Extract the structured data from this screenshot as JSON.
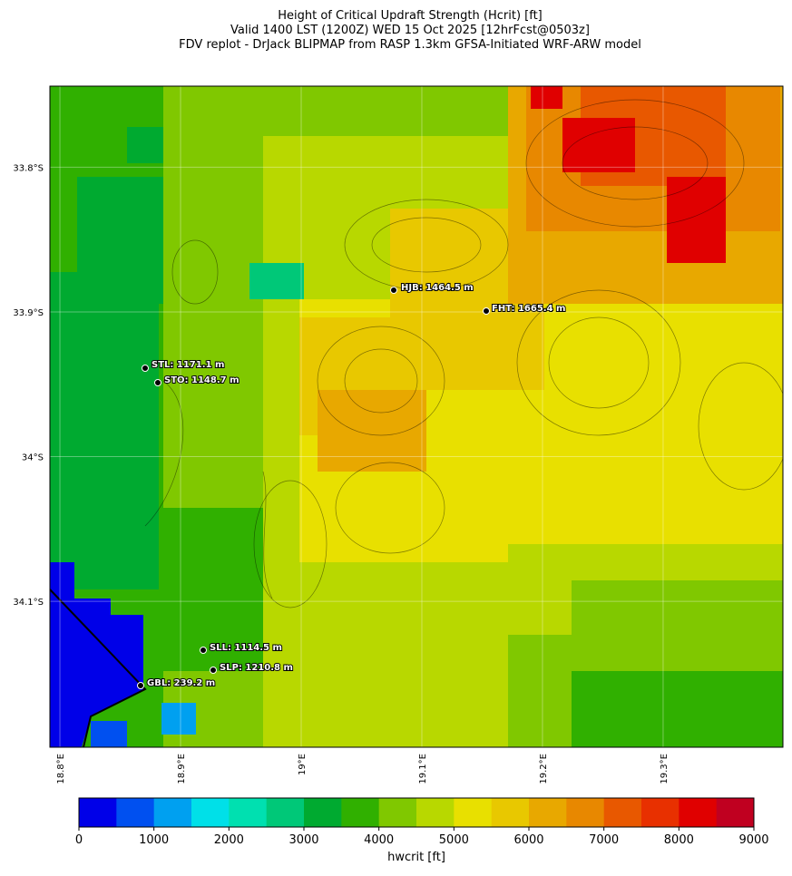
{
  "title": [
    "Height of Critical Updraft Strength (Hcrit) [ft]",
    "Valid 1400 LST (1200Z) WED 15 Oct 2025 [12hrFcst@0503z]",
    "FDV replot - DrJack BLIPMAP from RASP 1.3km GFSA-Initiated WRF-ARW model"
  ],
  "map": {
    "lat_lim": [
      -33.744,
      -34.2008
    ],
    "lat_ticks": [
      {
        "value": -33.8,
        "label": "33.8°S"
      },
      {
        "value": -33.9,
        "label": "33.9°S"
      },
      {
        "value": -34,
        "label": "34°S"
      },
      {
        "value": -34.1,
        "label": "34.1°S"
      }
    ],
    "lon_lim": [
      18.7917,
      19.3993
    ],
    "lon_ticks": [
      {
        "value": 18.8,
        "label": "18.8°E"
      },
      {
        "value": 18.9,
        "label": "18.9°E"
      },
      {
        "value": 19,
        "label": "19°E"
      },
      {
        "value": 19.1,
        "label": "19.1°E"
      },
      {
        "value": 19.2,
        "label": "19.2°E"
      },
      {
        "value": 19.3,
        "label": "19.3°E"
      }
    ],
    "stations": [
      "HJB: 1464.5 m",
      "FHT: 1665.4 m",
      "STL: 1171.1 m",
      "STO: 1148.7 m",
      "SLL: 1114.5 m",
      "SLP: 1210.8 m",
      "GBL: 239.2 m"
    ]
  },
  "colorbar": {
    "label": "hwcrit [ft]",
    "lim": [
      0,
      9000
    ],
    "ticks": [
      0,
      1000,
      2000,
      3000,
      4000,
      5000,
      6000,
      7000,
      8000,
      9000
    ],
    "colors": [
      "#0000e8",
      "#0050f0",
      "#00a0f0",
      "#00e0e8",
      "#00e0b0",
      "#00c878",
      "#00aa30",
      "#30b000",
      "#80c800",
      "#b8d800",
      "#e8e000",
      "#e8c800",
      "#e8a800",
      "#e88800",
      "#e85800",
      "#e83000",
      "#e00000",
      "#c00020"
    ]
  }
}
